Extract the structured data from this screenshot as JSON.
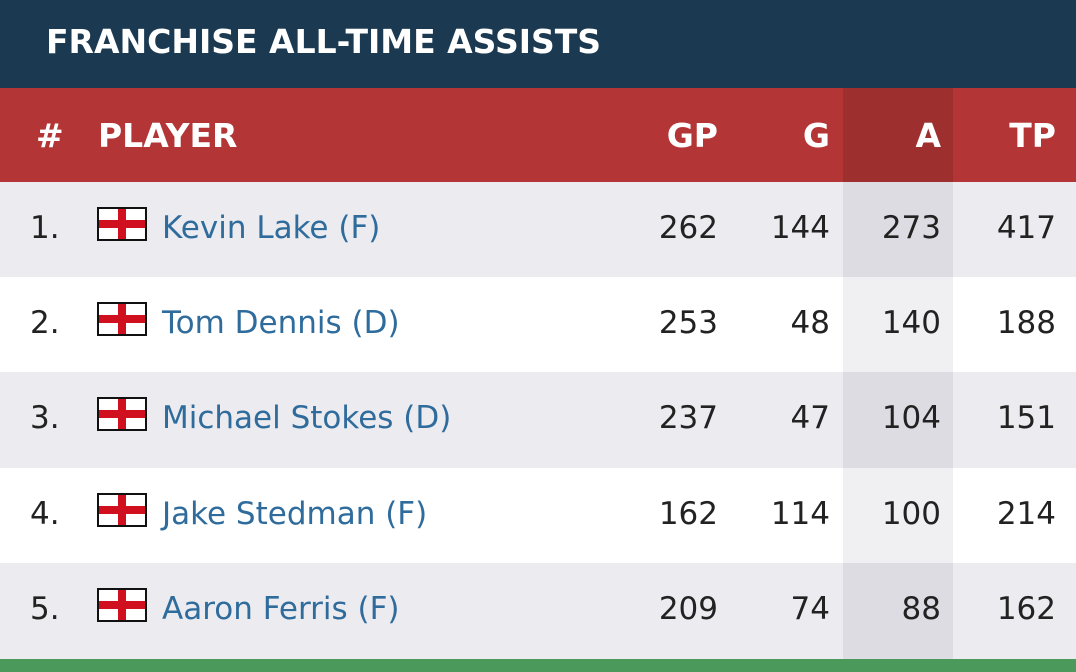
{
  "header": {
    "title": "FRANCHISE ALL-TIME ASSISTS"
  },
  "table": {
    "columns": [
      "#",
      "PLAYER",
      "GP",
      "G",
      "A",
      "TP"
    ],
    "rows": [
      [
        "1.",
        "Kevin Lake (F)",
        262,
        144,
        273,
        417
      ],
      [
        "2.",
        "Tom Dennis (D)",
        253,
        48,
        140,
        188
      ],
      [
        "3.",
        "Michael Stokes (D)",
        237,
        47,
        104,
        151
      ],
      [
        "4.",
        "Jake Stedman (F)",
        162,
        114,
        100,
        214
      ],
      [
        "5.",
        "Aaron Ferris (F)",
        209,
        74,
        88,
        162
      ]
    ]
  }
}
